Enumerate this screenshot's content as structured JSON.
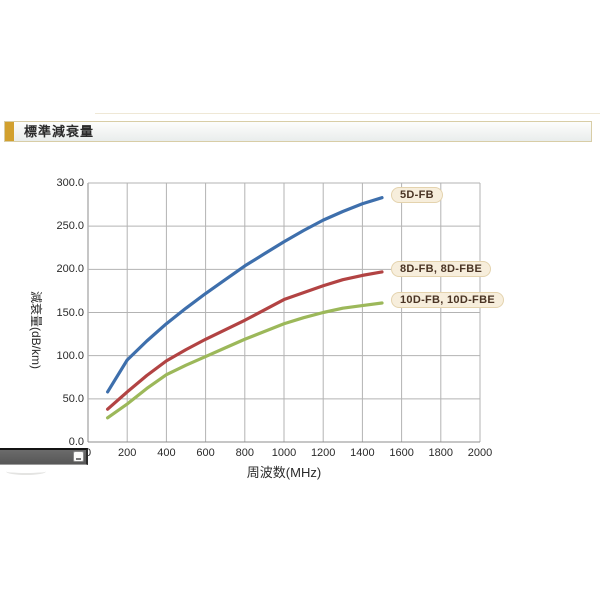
{
  "section_header": {
    "title": "標準減衰量"
  },
  "colors": {
    "accent": "#D2A02E",
    "grid": "#B3B3B3",
    "axis": "#8C8C8C",
    "badge_bg": "#F7EEDC",
    "badge_border": "#E4D3AE",
    "badge_text": "#4A3424"
  },
  "chart_data": {
    "type": "line",
    "title": "標準減衰量",
    "xlabel": "周波数(MHz)",
    "ylabel": "減衰量(dB/km)",
    "xlim": [
      0,
      2000
    ],
    "ylim": [
      0,
      300
    ],
    "xtick_step": 200,
    "ytick_step": 50,
    "xtick_labels": [
      "0",
      "200",
      "400",
      "600",
      "800",
      "1000",
      "1200",
      "1400",
      "1600",
      "1800",
      "2000"
    ],
    "ytick_labels": [
      "0.0",
      "50.0",
      "100.0",
      "150.0",
      "200.0",
      "250.0",
      "300.0"
    ],
    "grid": true,
    "legend_position": "at-line-ends",
    "series": [
      {
        "name": "5D-FB",
        "color": "#3E6FAC",
        "x": [
          100,
          200,
          300,
          400,
          500,
          600,
          700,
          800,
          900,
          1000,
          1100,
          1200,
          1300,
          1400,
          1500
        ],
        "y": [
          58,
          95,
          117,
          137,
          155,
          172,
          188,
          204,
          218,
          232,
          245,
          257,
          267,
          276,
          283
        ]
      },
      {
        "name": "8D-FB, 8D-FBE",
        "color": "#B24343",
        "x": [
          100,
          200,
          300,
          400,
          500,
          600,
          700,
          800,
          900,
          1000,
          1100,
          1200,
          1300,
          1400,
          1500
        ],
        "y": [
          38,
          58,
          77,
          94,
          107,
          119,
          130,
          141,
          153,
          165,
          173,
          181,
          188,
          193,
          197
        ]
      },
      {
        "name": "10D-FB, 10D-FBE",
        "color": "#9CB85A",
        "x": [
          100,
          200,
          300,
          400,
          500,
          600,
          700,
          800,
          900,
          1000,
          1100,
          1200,
          1300,
          1400,
          1500
        ],
        "y": [
          28,
          44,
          62,
          78,
          89,
          99,
          109,
          119,
          128,
          137,
          144,
          150,
          155,
          158,
          161
        ]
      }
    ]
  }
}
